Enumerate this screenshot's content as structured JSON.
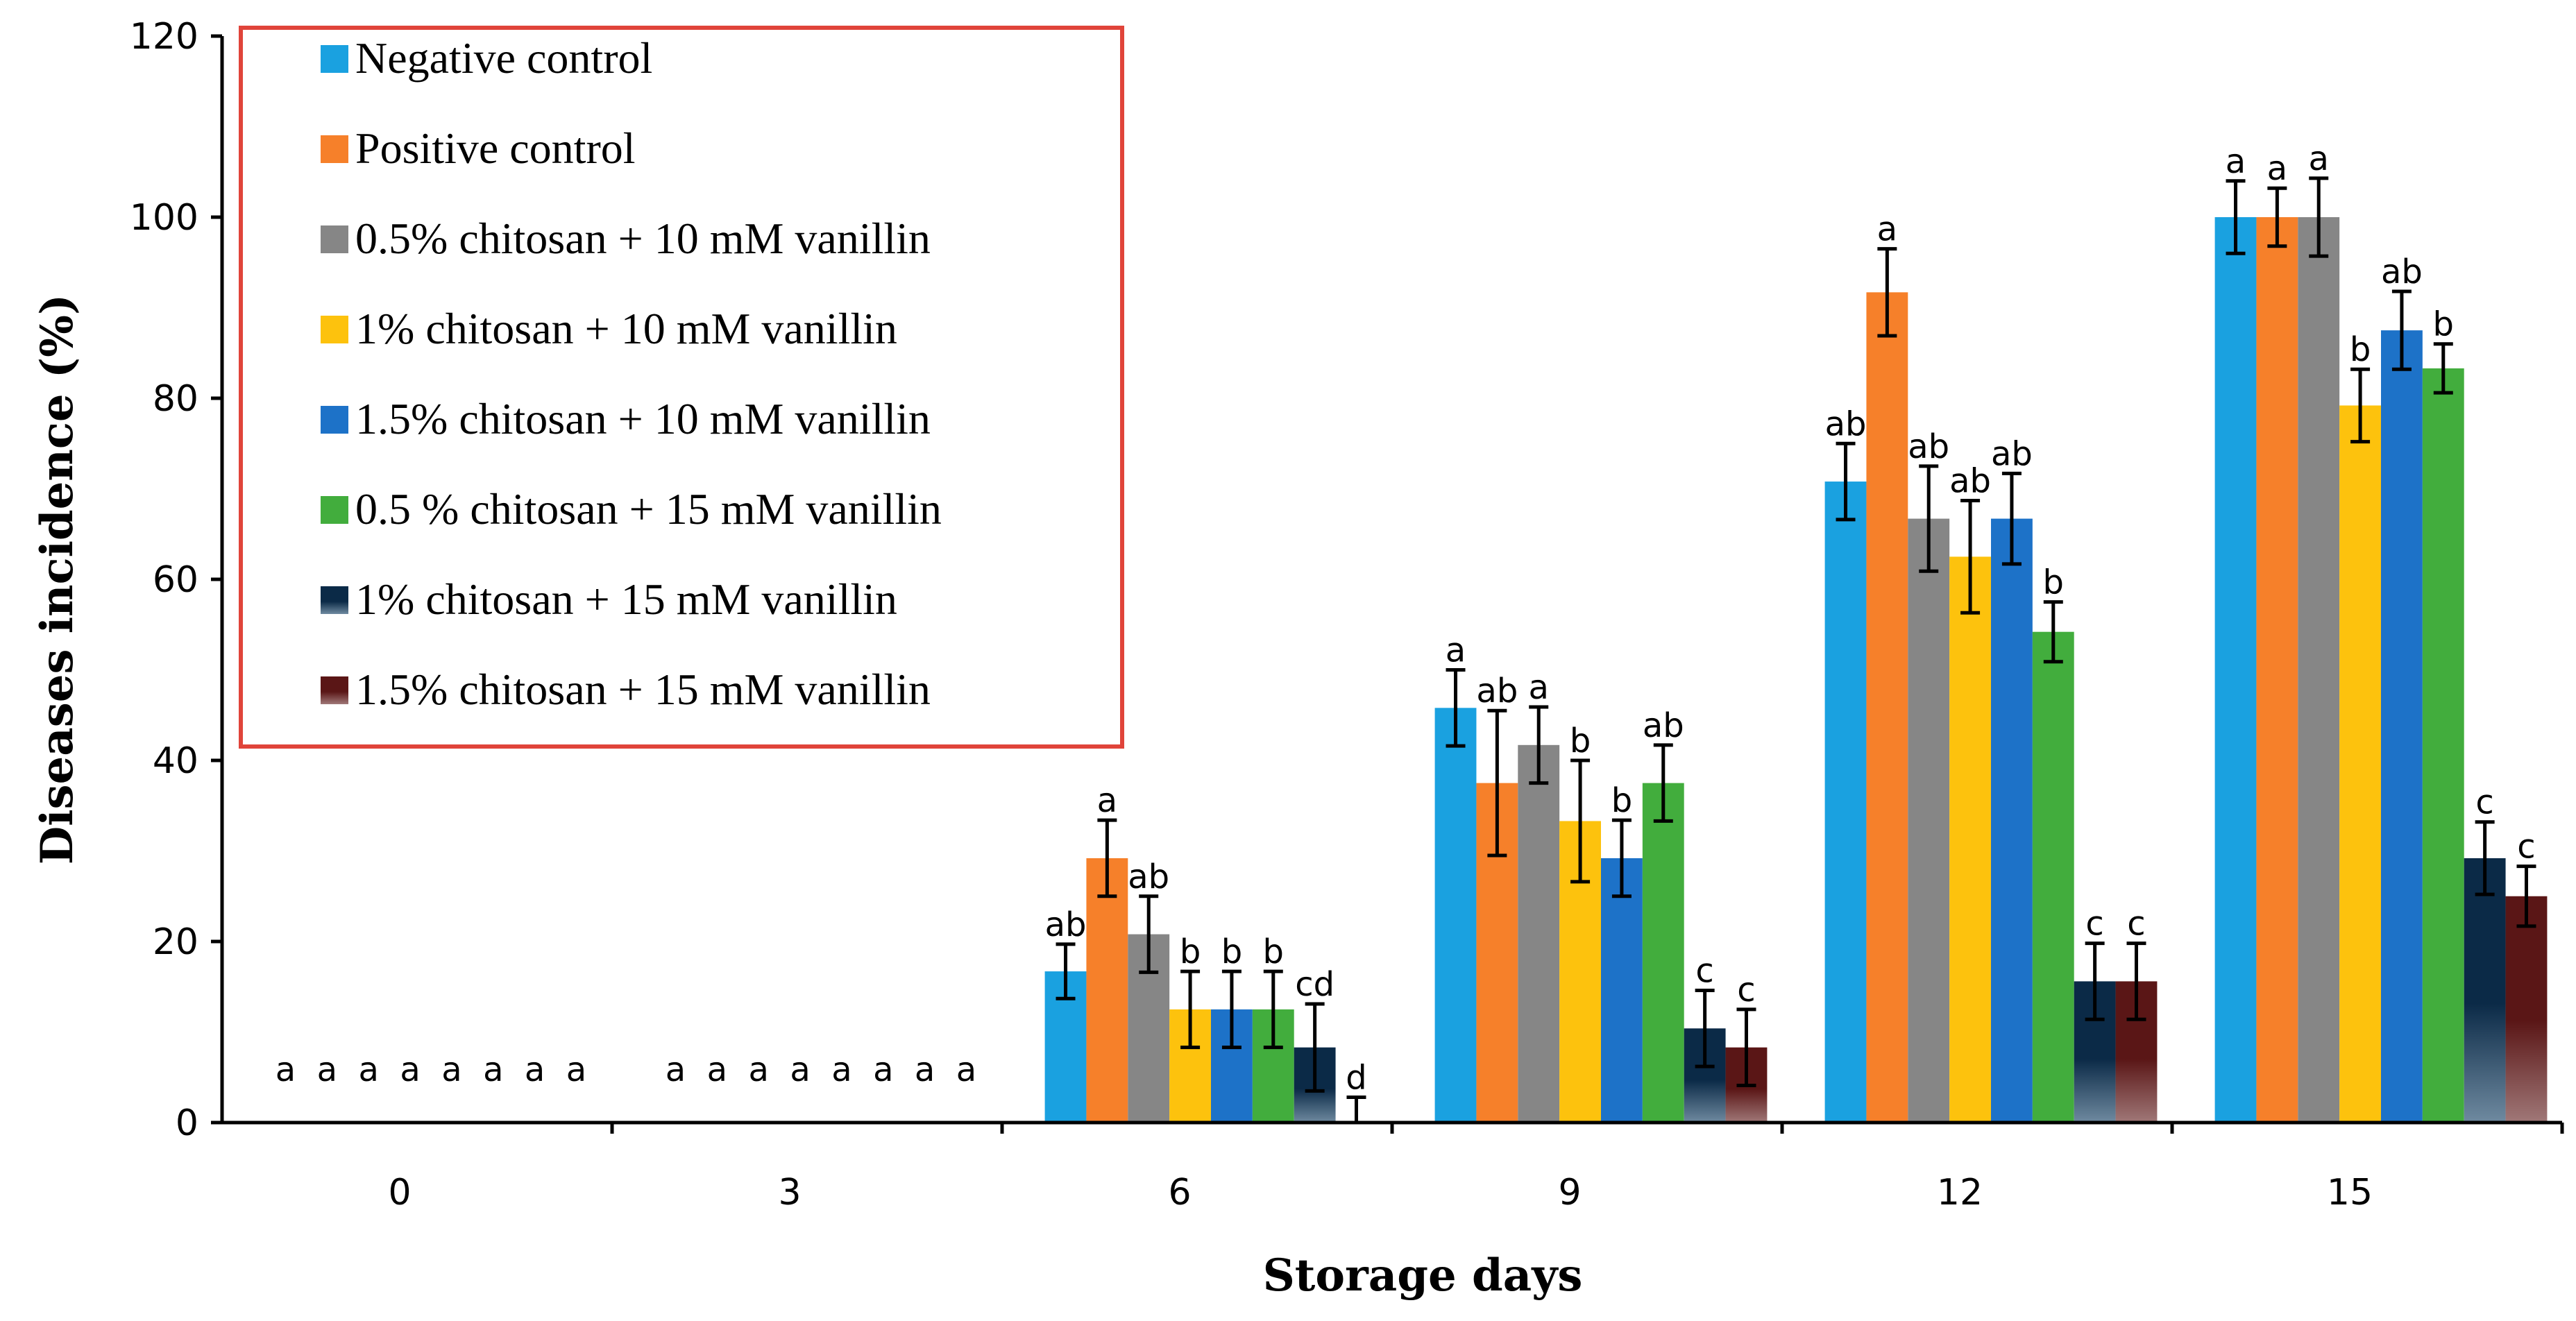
{
  "chart_data": {
    "type": "bar",
    "title": "",
    "xlabel": "Storage days",
    "ylabel": "Diseases incidence (%)",
    "ylim": [
      0,
      120
    ],
    "yticks": [
      "0",
      "20",
      "40",
      "60",
      "80",
      "100",
      "120"
    ],
    "grid": false,
    "legend_position": "top-left",
    "categories": [
      "0",
      "3",
      "6",
      "9",
      "12",
      "15"
    ],
    "series": [
      {
        "name": "Negative control",
        "color": "#1aa1e0",
        "values": [
          0,
          0,
          16.7,
          45.8,
          70.8,
          100
        ],
        "errors": [
          0,
          0,
          3,
          4.2,
          4.2,
          4
        ],
        "labels": [
          "a",
          "a",
          "ab",
          "a",
          "ab",
          "a"
        ]
      },
      {
        "name": "Positive control",
        "color": "#f6802a",
        "values": [
          0,
          0,
          29.2,
          37.5,
          91.7,
          100
        ],
        "errors": [
          0,
          0,
          4.2,
          8,
          4.8,
          3.2
        ],
        "labels": [
          "a",
          "a",
          "a",
          "ab",
          "a",
          "a"
        ]
      },
      {
        "name": "0.5% chitosan + 10 mM vanillin",
        "color": "#868686",
        "values": [
          0,
          0,
          20.8,
          41.7,
          66.7,
          100
        ],
        "errors": [
          0,
          0,
          4.2,
          4.2,
          5.8,
          4.3
        ],
        "labels": [
          "a",
          "a",
          "ab",
          "a",
          "ab",
          "a"
        ]
      },
      {
        "name": "1% chitosan + 10 mM vanillin",
        "color": "#fdc20d",
        "values": [
          0,
          0,
          12.5,
          33.3,
          62.5,
          79.2
        ],
        "errors": [
          0,
          0,
          4.2,
          6.7,
          6.2,
          4
        ],
        "labels": [
          "a",
          "a",
          "b",
          "b",
          "ab",
          "b"
        ]
      },
      {
        "name": "1.5% chitosan + 10 mM vanillin",
        "color": "#1d72c8",
        "values": [
          0,
          0,
          12.5,
          29.2,
          66.7,
          87.5
        ],
        "errors": [
          0,
          0,
          4.2,
          4.2,
          5,
          4.3
        ],
        "labels": [
          "a",
          "a",
          "b",
          "b",
          "ab",
          "ab"
        ]
      },
      {
        "name": "0.5 % chitosan + 15 mM vanillin",
        "color": "#42ad3d",
        "values": [
          0,
          0,
          12.5,
          37.5,
          54.2,
          83.3
        ],
        "errors": [
          0,
          0,
          4.2,
          4.2,
          3.3,
          2.7
        ],
        "labels": [
          "a",
          "a",
          "b",
          "ab",
          "b",
          "b"
        ]
      },
      {
        "name": "1% chitosan + 15 mM vanillin",
        "color": "#0b2a47",
        "values": [
          0,
          0,
          8.3,
          10.4,
          15.6,
          29.2
        ],
        "errors": [
          0,
          0,
          4.8,
          4.2,
          4.2,
          4
        ],
        "labels": [
          "a",
          "a",
          "cd",
          "c",
          "c",
          "c"
        ]
      },
      {
        "name": "1.5% chitosan + 15 mM vanillin",
        "color": "#5a1616",
        "values": [
          0,
          0,
          0,
          8.3,
          15.6,
          25
        ],
        "errors": [
          0,
          0,
          2.8,
          4.2,
          4.2,
          3.3
        ],
        "labels": [
          "a",
          "a",
          "d",
          "c",
          "c",
          "c"
        ]
      }
    ]
  }
}
